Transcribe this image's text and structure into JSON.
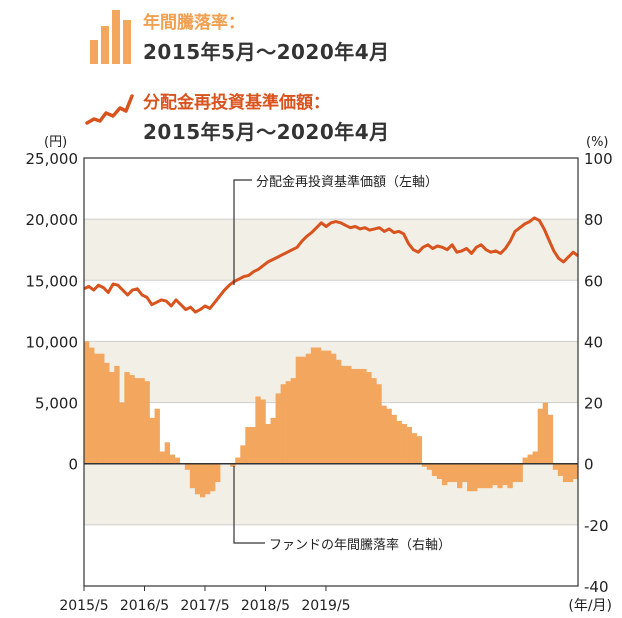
{
  "legend": {
    "bar_title": "年間騰落率：",
    "bar_period": "2015年5月～2020年4月",
    "line_title": "分配金再投資基準価額：",
    "line_period": "2015年5月～2020年4月"
  },
  "colors": {
    "bar": "#F2A65E",
    "line": "#D9531E",
    "band": "#F2EFE7",
    "legend_bar_text": "#F0A050",
    "legend_line_text": "#D9531E"
  },
  "chart_data": {
    "type": "bar+line",
    "left_axis": {
      "unit_label": "(円)",
      "ticks": [
        "25,000",
        "20,000",
        "15,000",
        "10,000",
        "5,000",
        "0"
      ],
      "range": [
        -10000,
        25000
      ]
    },
    "right_axis": {
      "unit_label": "(%)",
      "ticks": [
        "100",
        "80",
        "60",
        "40",
        "20",
        "0",
        "-20",
        "-40"
      ],
      "range": [
        -40,
        100
      ]
    },
    "x_axis": {
      "ticks": [
        "2015/5",
        "2016/5",
        "2017/5",
        "2018/5",
        "2019/5"
      ],
      "unit_label": "(年/月)"
    },
    "annotations": {
      "line": "分配金再投資基準価額（左軸）",
      "bar": "ファンドの年間騰落率（右軸）"
    },
    "series": [
      {
        "name": "分配金再投資基準価額",
        "axis": "left",
        "type": "line",
        "values": [
          14300,
          14500,
          14200,
          14600,
          14400,
          14000,
          14700,
          14600,
          14200,
          13800,
          14200,
          14300,
          13800,
          13600,
          13000,
          13200,
          13400,
          13300,
          12900,
          13400,
          13000,
          12600,
          12800,
          12400,
          12600,
          12900,
          12700,
          13200,
          13700,
          14200,
          14600,
          14900,
          15100,
          15300,
          15400,
          15700,
          15900,
          16200,
          16500,
          16700,
          16900,
          17100,
          17300,
          17500,
          17700,
          18200,
          18600,
          18900,
          19300,
          19700,
          19400,
          19700,
          19800,
          19700,
          19500,
          19300,
          19400,
          19200,
          19300,
          19100,
          19200,
          19300,
          19000,
          19200,
          18900,
          19000,
          18800,
          18000,
          17500,
          17300,
          17700,
          17900,
          17600,
          17800,
          17700,
          17500,
          17900,
          17300,
          17400,
          17600,
          17200,
          17700,
          17900,
          17500,
          17300,
          17400,
          17200,
          17600,
          18200,
          19000,
          19300,
          19600,
          19800,
          20100,
          19900,
          19200,
          18300,
          17400,
          16800,
          16500,
          16900,
          17300,
          17000
        ]
      },
      {
        "name": "ファンドの年間騰落率",
        "axis": "right",
        "type": "bar",
        "values": [
          40,
          38,
          36,
          36,
          33,
          30,
          32,
          20,
          30,
          29,
          28,
          28,
          27,
          15,
          18,
          4,
          7,
          3,
          2,
          0,
          -2,
          -8,
          -10,
          -11,
          -10,
          -9,
          -6,
          0,
          0,
          -1,
          2,
          6,
          12,
          12,
          22,
          21,
          13,
          15,
          23,
          26,
          27,
          28,
          35,
          35,
          36,
          38,
          38,
          37,
          37,
          36,
          34,
          32,
          32,
          31,
          31,
          31,
          30,
          28,
          26,
          19,
          18,
          16,
          14,
          13,
          12,
          10,
          9,
          -1,
          -2,
          -4,
          -5,
          -7,
          -6,
          -6,
          -8,
          -6,
          -9,
          -9,
          -8,
          -8,
          -8,
          -7,
          -8,
          -7,
          -8,
          -6,
          -6,
          2,
          3,
          4,
          18,
          20,
          16,
          -2,
          -4,
          -6,
          -6,
          -5
        ]
      }
    ],
    "grid": "horizontal bands"
  }
}
